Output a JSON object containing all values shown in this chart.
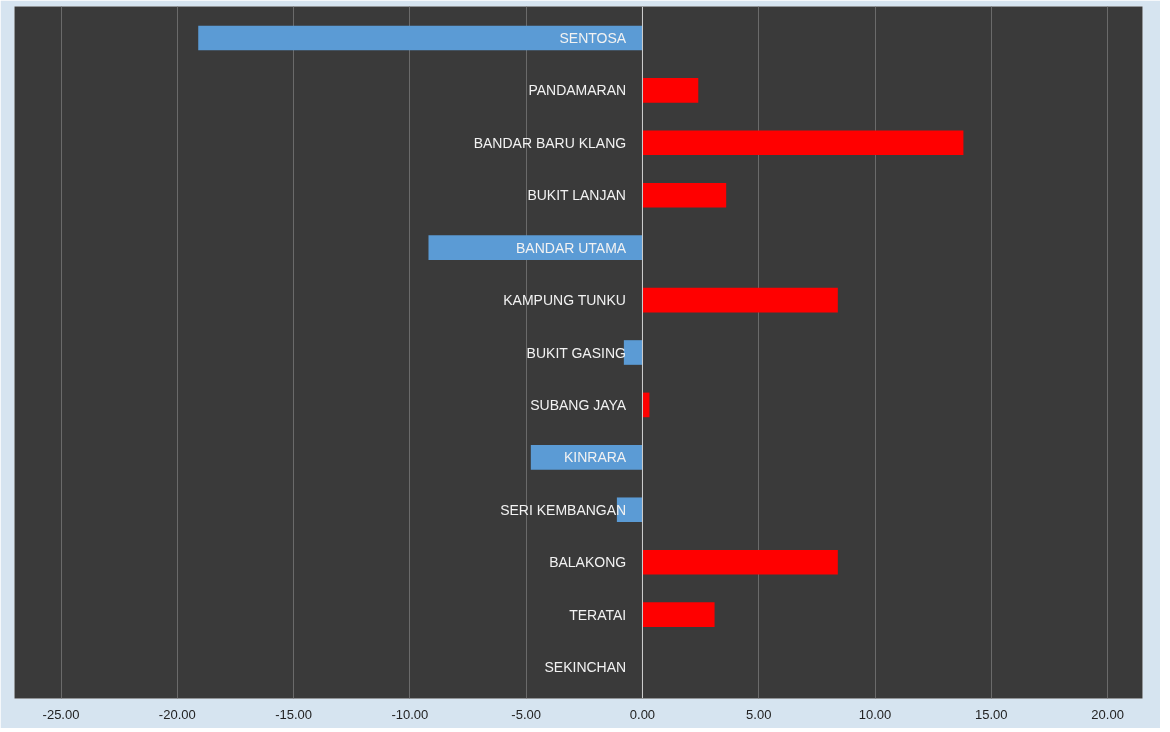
{
  "chart_data": {
    "type": "bar",
    "orientation": "horizontal",
    "categories": [
      "SENTOSA",
      "PANDAMARAN",
      "BANDAR BARU KLANG",
      "BUKIT LANJAN",
      "BANDAR UTAMA",
      "KAMPUNG TUNKU",
      "BUKIT GASING",
      "SUBANG JAYA",
      "KINRARA",
      "SERI KEMBANGAN",
      "BALAKONG",
      "TERATAI",
      "SEKINCHAN"
    ],
    "values": [
      -19.1,
      2.4,
      13.8,
      3.6,
      -9.2,
      8.4,
      -0.8,
      0.3,
      -4.8,
      -1.1,
      8.4,
      3.1,
      0
    ],
    "colors": [
      "#5b9bd5",
      "#ff0000",
      "#ff0000",
      "#ff0000",
      "#5b9bd5",
      "#ff0000",
      "#5b9bd5",
      "#ff0000",
      "#5b9bd5",
      "#5b9bd5",
      "#ff0000",
      "#ff0000",
      "#ff0000"
    ],
    "xlim": [
      -27,
      21.5
    ],
    "xticks": [
      {
        "value": -25,
        "label": "-25.00"
      },
      {
        "value": -20,
        "label": "-20.00"
      },
      {
        "value": -15,
        "label": "-15.00"
      },
      {
        "value": -10,
        "label": "-10.00"
      },
      {
        "value": -5,
        "label": "-5.00"
      },
      {
        "value": 0,
        "label": "0.00"
      },
      {
        "value": 5,
        "label": "5.00"
      },
      {
        "value": 10,
        "label": "10.00"
      },
      {
        "value": 15,
        "label": "15.00"
      },
      {
        "value": 20,
        "label": "20.00"
      }
    ],
    "grid": "x"
  }
}
